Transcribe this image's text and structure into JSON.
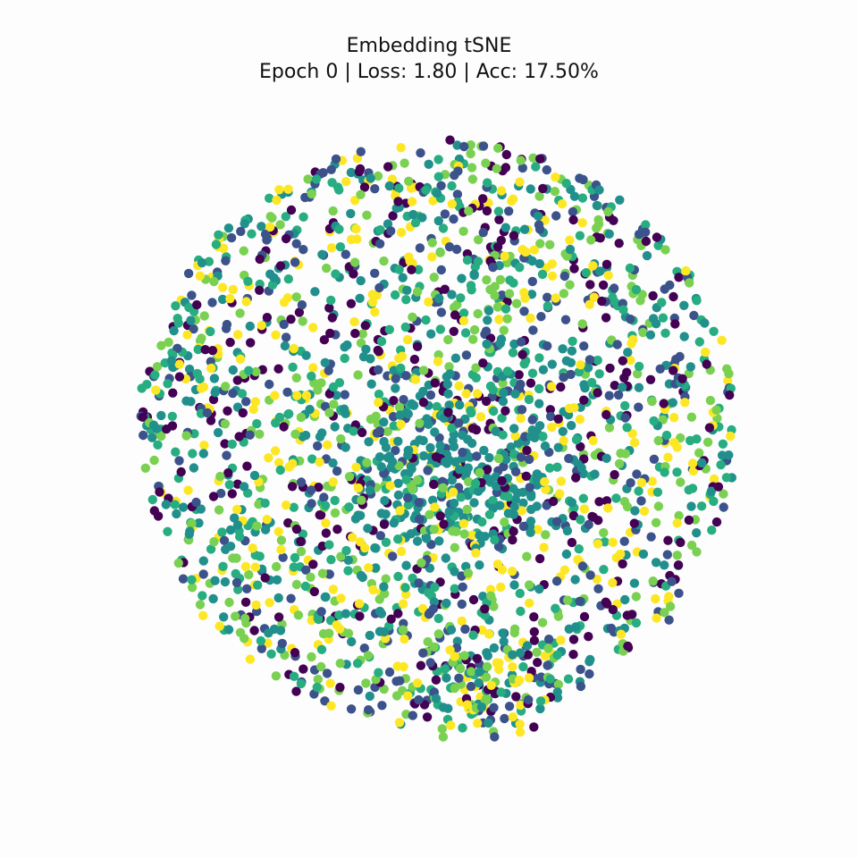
{
  "chart_data": {
    "type": "scatter",
    "title": "Embedding tSNE",
    "subtitle": "Epoch 0 | Loss: 1.80 | Acc: 17.50%",
    "axes_visible": false,
    "grid": false,
    "legend": "none",
    "xlim": [
      -3.2,
      3.2
    ],
    "ylim": [
      -3.2,
      3.2
    ],
    "palette": "viridis",
    "class_colors": [
      "#440154",
      "#3b528b",
      "#21908d",
      "#27ad81",
      "#7ad151",
      "#fde725"
    ],
    "num_classes": 6,
    "num_points": 2400,
    "distribution": "roughly circular cloud centered near origin; dense teal core slightly below center; a tail extending downward at the bottom"
  }
}
